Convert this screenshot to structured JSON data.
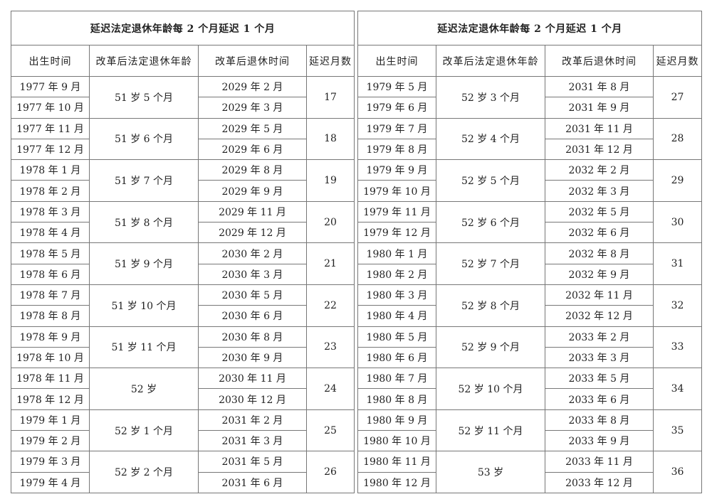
{
  "tables": [
    {
      "title": "延迟法定退休年龄每 2 个月延迟 1 个月",
      "headers": [
        "出生时间",
        "改革后法定退休年龄",
        "改革后退休时间",
        "延迟月数"
      ],
      "groups": [
        {
          "rows": [
            {
              "birth": "1977 年 9 月",
              "retire": "2029 年 2 月"
            },
            {
              "birth": "1977 年 10 月",
              "retire": "2029 年 3 月"
            }
          ],
          "age": "51 岁 5 个月",
          "delay": 17
        },
        {
          "rows": [
            {
              "birth": "1977 年 11 月",
              "retire": "2029 年 5 月"
            },
            {
              "birth": "1977 年 12 月",
              "retire": "2029 年 6 月"
            }
          ],
          "age": "51 岁 6 个月",
          "delay": 18
        },
        {
          "rows": [
            {
              "birth": "1978 年 1 月",
              "retire": "2029 年 8 月"
            },
            {
              "birth": "1978 年 2 月",
              "retire": "2029 年 9 月"
            }
          ],
          "age": "51 岁 7 个月",
          "delay": 19
        },
        {
          "rows": [
            {
              "birth": "1978 年 3 月",
              "retire": "2029 年 11 月"
            },
            {
              "birth": "1978 年 4 月",
              "retire": "2029 年 12 月"
            }
          ],
          "age": "51 岁 8 个月",
          "delay": 20
        },
        {
          "rows": [
            {
              "birth": "1978 年 5 月",
              "retire": "2030 年 2 月"
            },
            {
              "birth": "1978 年 6 月",
              "retire": "2030 年 3 月"
            }
          ],
          "age": "51 岁 9 个月",
          "delay": 21
        },
        {
          "rows": [
            {
              "birth": "1978 年 7 月",
              "retire": "2030 年 5 月"
            },
            {
              "birth": "1978 年 8 月",
              "retire": "2030 年 6 月"
            }
          ],
          "age": "51 岁 10 个月",
          "delay": 22
        },
        {
          "rows": [
            {
              "birth": "1978 年 9 月",
              "retire": "2030 年 8 月"
            },
            {
              "birth": "1978 年 10 月",
              "retire": "2030 年 9 月"
            }
          ],
          "age": "51 岁 11 个月",
          "delay": 23
        },
        {
          "rows": [
            {
              "birth": "1978 年 11 月",
              "retire": "2030 年 11 月"
            },
            {
              "birth": "1978 年 12 月",
              "retire": "2030 年 12 月"
            }
          ],
          "age": "52 岁",
          "delay": 24
        },
        {
          "rows": [
            {
              "birth": "1979 年 1 月",
              "retire": "2031 年 2 月"
            },
            {
              "birth": "1979 年 2 月",
              "retire": "2031 年 3 月"
            }
          ],
          "age": "52 岁 1 个月",
          "delay": 25
        },
        {
          "rows": [
            {
              "birth": "1979 年 3 月",
              "retire": "2031 年 5 月"
            },
            {
              "birth": "1979 年 4 月",
              "retire": "2031 年 6 月"
            }
          ],
          "age": "52 岁 2 个月",
          "delay": 26
        }
      ]
    },
    {
      "title": "延迟法定退休年龄每 2 个月延迟 1 个月",
      "headers": [
        "出生时间",
        "改革后法定退休年龄",
        "改革后退休时间",
        "延迟月数"
      ],
      "groups": [
        {
          "rows": [
            {
              "birth": "1979 年 5 月",
              "retire": "2031 年 8 月"
            },
            {
              "birth": "1979 年 6 月",
              "retire": "2031 年 9 月"
            }
          ],
          "age": "52 岁 3 个月",
          "delay": 27
        },
        {
          "rows": [
            {
              "birth": "1979 年 7 月",
              "retire": "2031 年 11 月"
            },
            {
              "birth": "1979 年 8 月",
              "retire": "2031 年 12 月"
            }
          ],
          "age": "52 岁 4 个月",
          "delay": 28
        },
        {
          "rows": [
            {
              "birth": "1979 年 9 月",
              "retire": "2032 年 2 月"
            },
            {
              "birth": "1979 年 10 月",
              "retire": "2032 年 3 月"
            }
          ],
          "age": "52 岁 5 个月",
          "delay": 29
        },
        {
          "rows": [
            {
              "birth": "1979 年 11 月",
              "retire": "2032 年 5 月"
            },
            {
              "birth": "1979 年 12 月",
              "retire": "2032 年 6 月"
            }
          ],
          "age": "52 岁 6 个月",
          "delay": 30
        },
        {
          "rows": [
            {
              "birth": "1980 年 1 月",
              "retire": "2032 年 8 月"
            },
            {
              "birth": "1980 年 2 月",
              "retire": "2032 年 9 月"
            }
          ],
          "age": "52 岁 7 个月",
          "delay": 31
        },
        {
          "rows": [
            {
              "birth": "1980 年 3 月",
              "retire": "2032 年 11 月"
            },
            {
              "birth": "1980 年 4 月",
              "retire": "2032 年 12 月"
            }
          ],
          "age": "52 岁 8 个月",
          "delay": 32
        },
        {
          "rows": [
            {
              "birth": "1980 年 5 月",
              "retire": "2033 年 2 月"
            },
            {
              "birth": "1980 年 6 月",
              "retire": "2033 年 3 月"
            }
          ],
          "age": "52 岁 9 个月",
          "delay": 33
        },
        {
          "rows": [
            {
              "birth": "1980 年 7 月",
              "retire": "2033 年 5 月"
            },
            {
              "birth": "1980 年 8 月",
              "retire": "2033 年 6 月"
            }
          ],
          "age": "52 岁 10 个月",
          "delay": 34
        },
        {
          "rows": [
            {
              "birth": "1980 年 9 月",
              "retire": "2033 年 8 月"
            },
            {
              "birth": "1980 年 10 月",
              "retire": "2033 年 9 月"
            }
          ],
          "age": "52 岁 11 个月",
          "delay": 35
        },
        {
          "rows": [
            {
              "birth": "1980 年 11 月",
              "retire": "2033 年 11 月"
            },
            {
              "birth": "1980 年 12 月",
              "retire": "2033 年 12 月"
            }
          ],
          "age": "53 岁",
          "delay": 36
        }
      ]
    }
  ]
}
